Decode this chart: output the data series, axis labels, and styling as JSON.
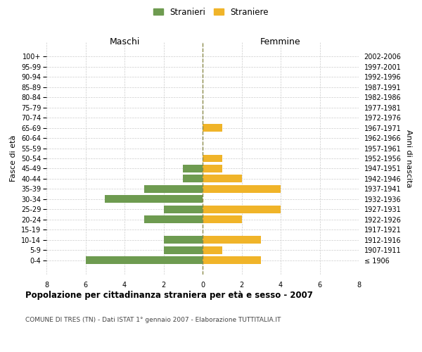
{
  "age_groups": [
    "100+",
    "95-99",
    "90-94",
    "85-89",
    "80-84",
    "75-79",
    "70-74",
    "65-69",
    "60-64",
    "55-59",
    "50-54",
    "45-49",
    "40-44",
    "35-39",
    "30-34",
    "25-29",
    "20-24",
    "15-19",
    "10-14",
    "5-9",
    "0-4"
  ],
  "birth_years": [
    "≤ 1906",
    "1907-1911",
    "1912-1916",
    "1917-1921",
    "1922-1926",
    "1927-1931",
    "1932-1936",
    "1937-1941",
    "1942-1946",
    "1947-1951",
    "1952-1956",
    "1957-1961",
    "1962-1966",
    "1967-1971",
    "1972-1976",
    "1977-1981",
    "1982-1986",
    "1987-1991",
    "1992-1996",
    "1997-2001",
    "2002-2006"
  ],
  "maschi": [
    0,
    0,
    0,
    0,
    0,
    0,
    0,
    0,
    0,
    0,
    0,
    1,
    1,
    3,
    5,
    2,
    3,
    0,
    2,
    2,
    6
  ],
  "femmine": [
    0,
    0,
    0,
    0,
    0,
    0,
    0,
    1,
    0,
    0,
    1,
    1,
    2,
    4,
    0,
    4,
    2,
    0,
    3,
    1,
    3
  ],
  "color_maschi": "#6e9b50",
  "color_femmine": "#f0b429",
  "title": "Popolazione per cittadinanza straniera per età e sesso - 2007",
  "subtitle": "COMUNE DI TRES (TN) - Dati ISTAT 1° gennaio 2007 - Elaborazione TUTTITALIA.IT",
  "xlabel_left": "Maschi",
  "xlabel_right": "Femmine",
  "ylabel_left": "Fasce di età",
  "ylabel_right": "Anni di nascita",
  "legend_maschi": "Stranieri",
  "legend_femmine": "Straniere",
  "xlim": 8,
  "background_color": "#ffffff",
  "grid_color": "#cccccc"
}
